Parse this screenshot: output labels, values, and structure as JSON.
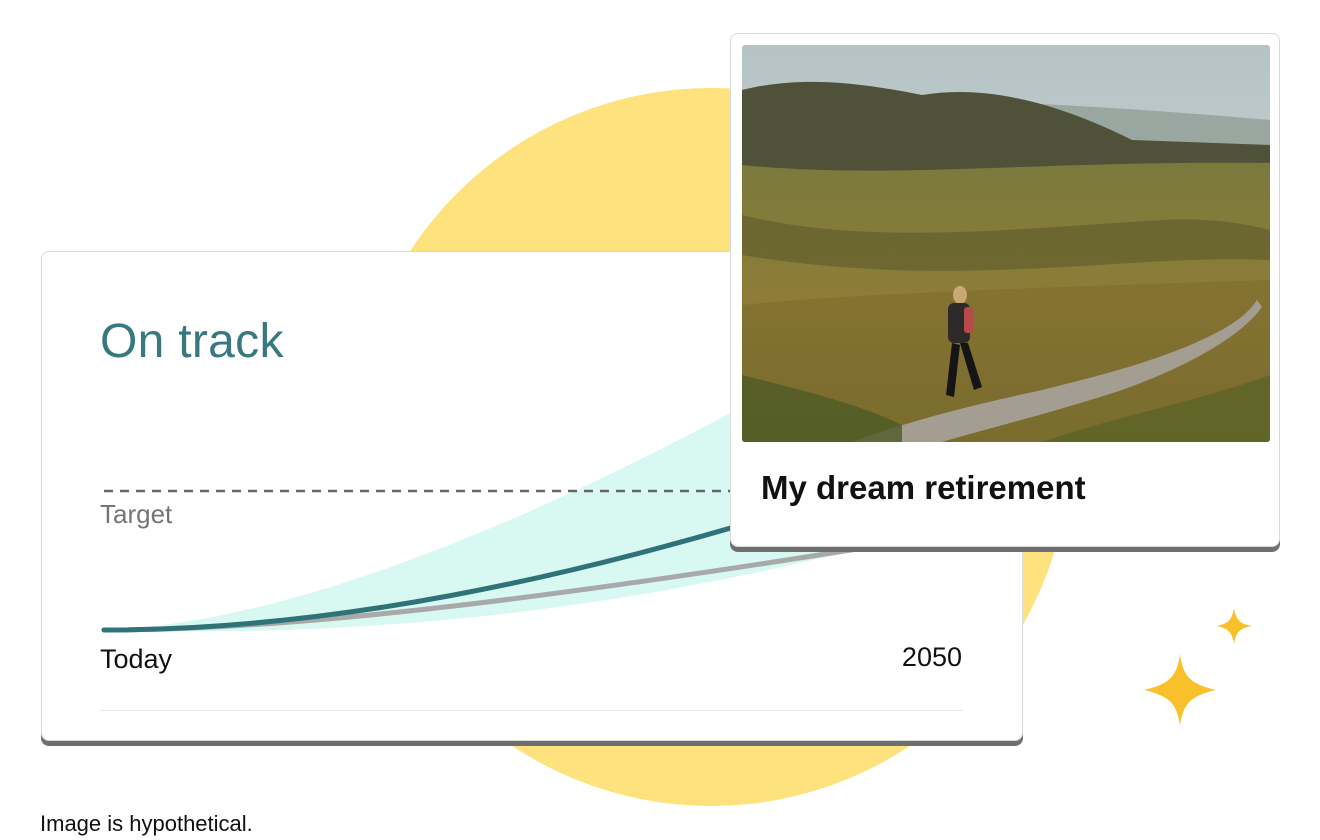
{
  "colors": {
    "sun": "#fde27d",
    "status": "#37797f",
    "projection_band": "#d8f8f2",
    "projected_line": "#2f7379",
    "baseline_line": "#a9a9a9",
    "target_line": "#666666",
    "sparkle": "#f8c12c"
  },
  "chart_card": {
    "status": "On track",
    "target_label": "Target",
    "start_label": "Today",
    "end_label": "2050"
  },
  "photo_card": {
    "caption": "My dream retirement",
    "photo_subject": "hiker on stone path across moorland"
  },
  "decor": {
    "sparkle_icon": "four-point-star"
  },
  "footer": {
    "disclaimer": "Image is hypothetical."
  }
}
